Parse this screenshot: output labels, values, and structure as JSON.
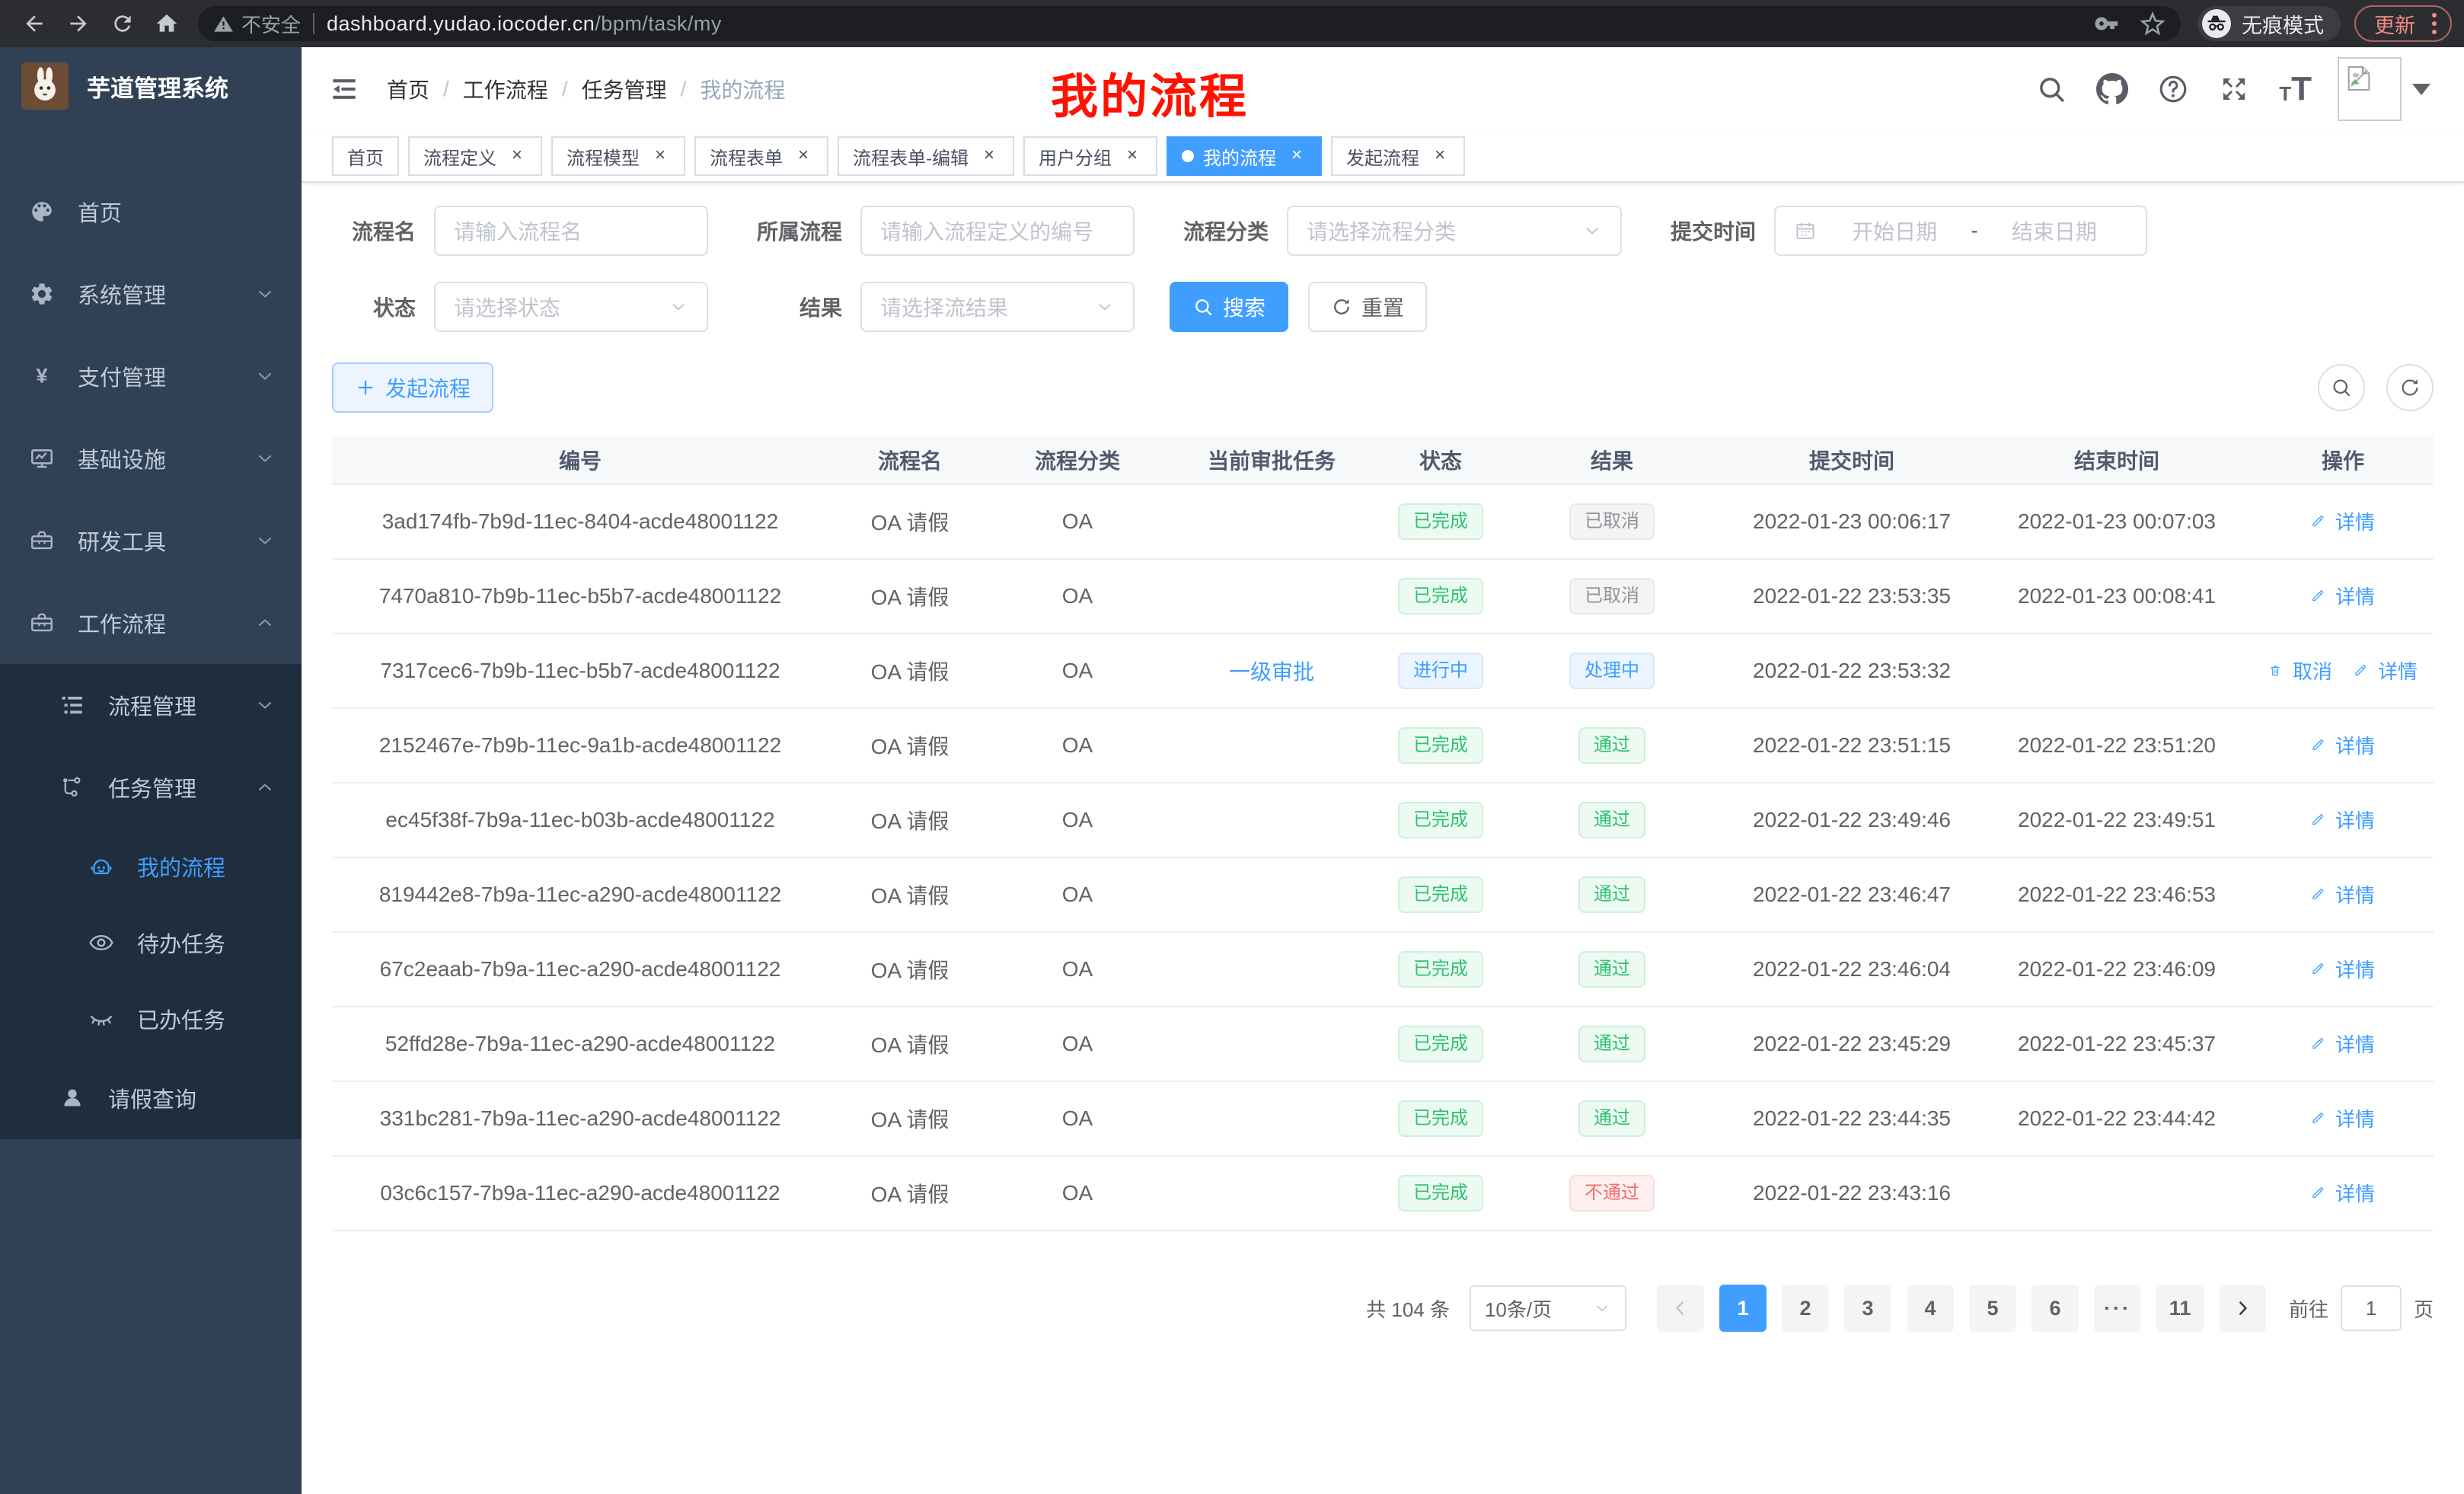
{
  "colors": {
    "accent": "#409eff",
    "success": "#2dc26e",
    "danger": "#f56c6c",
    "info": "#909399",
    "sidebar_bg": "#304156",
    "submenu_bg": "#1f2d3d",
    "annotation_red": "#ff1200"
  },
  "browser": {
    "security_label": "不安全",
    "url_domain": "dashboard.yudao.iocoder.cn",
    "url_path": "/bpm/task/my",
    "incognito_label": "无痕模式",
    "update_label": "更新"
  },
  "sidebar": {
    "title": "芋道管理系统",
    "items": [
      {
        "label": "首页",
        "icon": "dashboard-icon",
        "level": 1,
        "zone": "main"
      },
      {
        "label": "系统管理",
        "icon": "gear-icon",
        "level": 1,
        "zone": "main",
        "chevron": "down"
      },
      {
        "label": "支付管理",
        "icon": "yen-icon",
        "level": 1,
        "zone": "main",
        "chevron": "down"
      },
      {
        "label": "基础设施",
        "icon": "monitor-icon",
        "level": 1,
        "zone": "main",
        "chevron": "down"
      },
      {
        "label": "研发工具",
        "icon": "toolbox-icon",
        "level": 1,
        "zone": "main",
        "chevron": "down"
      },
      {
        "label": "工作流程",
        "icon": "briefcase-icon",
        "level": 1,
        "zone": "main",
        "chevron": "up"
      },
      {
        "label": "流程管理",
        "icon": "tree-icon",
        "level": 2,
        "zone": "sub",
        "chevron": "down"
      },
      {
        "label": "任务管理",
        "icon": "flow-icon",
        "level": 2,
        "zone": "sub",
        "chevron": "up"
      },
      {
        "label": "我的流程",
        "icon": "robot-icon",
        "level": 3,
        "zone": "sub",
        "active": true
      },
      {
        "label": "待办任务",
        "icon": "eye-icon",
        "level": 3,
        "zone": "sub"
      },
      {
        "label": "已办任务",
        "icon": "eye-closed-icon",
        "level": 3,
        "zone": "sub"
      },
      {
        "label": "请假查询",
        "icon": "user-icon",
        "level": 2,
        "zone": "sub"
      }
    ]
  },
  "navbar": {
    "breadcrumb": [
      "首页",
      "工作流程",
      "任务管理",
      "我的流程"
    ],
    "annotation": "我的流程"
  },
  "tabs": [
    {
      "label": "首页",
      "closable": false,
      "active": false
    },
    {
      "label": "流程定义",
      "closable": true,
      "active": false
    },
    {
      "label": "流程模型",
      "closable": true,
      "active": false
    },
    {
      "label": "流程表单",
      "closable": true,
      "active": false
    },
    {
      "label": "流程表单-编辑",
      "closable": true,
      "active": false
    },
    {
      "label": "用户分组",
      "closable": true,
      "active": false
    },
    {
      "label": "我的流程",
      "closable": true,
      "active": true
    },
    {
      "label": "发起流程",
      "closable": true,
      "active": false
    }
  ],
  "filters": {
    "name_label": "流程名",
    "name_placeholder": "请输入流程名",
    "def_label": "所属流程",
    "def_placeholder": "请输入流程定义的编号",
    "category_label": "流程分类",
    "category_placeholder": "请选择流程分类",
    "time_label": "提交时间",
    "time_start_placeholder": "开始日期",
    "time_separator": "-",
    "time_end_placeholder": "结束日期",
    "status_label": "状态",
    "status_placeholder": "请选择状态",
    "result_label": "结果",
    "result_placeholder": "请选择流结果",
    "search_label": "搜索",
    "reset_label": "重置"
  },
  "toolbar": {
    "create_label": "发起流程"
  },
  "table": {
    "columns": [
      "编号",
      "流程名",
      "流程分类",
      "当前审批任务",
      "状态",
      "结果",
      "提交时间",
      "结束时间",
      "操作"
    ],
    "rows": [
      {
        "id": "3ad174fb-7b9d-11ec-8404-acde48001122",
        "name": "OA 请假",
        "category": "OA",
        "task": "",
        "status": {
          "text": "已完成",
          "type": "success"
        },
        "result": {
          "text": "已取消",
          "type": "info"
        },
        "submit_time": "2022-01-23 00:06:17",
        "end_time": "2022-01-23 00:07:03",
        "actions": [
          {
            "label": "详情",
            "icon": "edit-icon"
          }
        ]
      },
      {
        "id": "7470a810-7b9b-11ec-b5b7-acde48001122",
        "name": "OA 请假",
        "category": "OA",
        "task": "",
        "status": {
          "text": "已完成",
          "type": "success"
        },
        "result": {
          "text": "已取消",
          "type": "info"
        },
        "submit_time": "2022-01-22 23:53:35",
        "end_time": "2022-01-23 00:08:41",
        "actions": [
          {
            "label": "详情",
            "icon": "edit-icon"
          }
        ]
      },
      {
        "id": "7317cec6-7b9b-11ec-b5b7-acde48001122",
        "name": "OA 请假",
        "category": "OA",
        "task": "一级审批",
        "status": {
          "text": "进行中",
          "type": "primary"
        },
        "result": {
          "text": "处理中",
          "type": "primary"
        },
        "submit_time": "2022-01-22 23:53:32",
        "end_time": "",
        "actions": [
          {
            "label": "取消",
            "icon": "delete-icon"
          },
          {
            "label": "详情",
            "icon": "edit-icon"
          }
        ]
      },
      {
        "id": "2152467e-7b9b-11ec-9a1b-acde48001122",
        "name": "OA 请假",
        "category": "OA",
        "task": "",
        "status": {
          "text": "已完成",
          "type": "success"
        },
        "result": {
          "text": "通过",
          "type": "success"
        },
        "submit_time": "2022-01-22 23:51:15",
        "end_time": "2022-01-22 23:51:20",
        "actions": [
          {
            "label": "详情",
            "icon": "edit-icon"
          }
        ]
      },
      {
        "id": "ec45f38f-7b9a-11ec-b03b-acde48001122",
        "name": "OA 请假",
        "category": "OA",
        "task": "",
        "status": {
          "text": "已完成",
          "type": "success"
        },
        "result": {
          "text": "通过",
          "type": "success"
        },
        "submit_time": "2022-01-22 23:49:46",
        "end_time": "2022-01-22 23:49:51",
        "actions": [
          {
            "label": "详情",
            "icon": "edit-icon"
          }
        ]
      },
      {
        "id": "819442e8-7b9a-11ec-a290-acde48001122",
        "name": "OA 请假",
        "category": "OA",
        "task": "",
        "status": {
          "text": "已完成",
          "type": "success"
        },
        "result": {
          "text": "通过",
          "type": "success"
        },
        "submit_time": "2022-01-22 23:46:47",
        "end_time": "2022-01-22 23:46:53",
        "actions": [
          {
            "label": "详情",
            "icon": "edit-icon"
          }
        ]
      },
      {
        "id": "67c2eaab-7b9a-11ec-a290-acde48001122",
        "name": "OA 请假",
        "category": "OA",
        "task": "",
        "status": {
          "text": "已完成",
          "type": "success"
        },
        "result": {
          "text": "通过",
          "type": "success"
        },
        "submit_time": "2022-01-22 23:46:04",
        "end_time": "2022-01-22 23:46:09",
        "actions": [
          {
            "label": "详情",
            "icon": "edit-icon"
          }
        ]
      },
      {
        "id": "52ffd28e-7b9a-11ec-a290-acde48001122",
        "name": "OA 请假",
        "category": "OA",
        "task": "",
        "status": {
          "text": "已完成",
          "type": "success"
        },
        "result": {
          "text": "通过",
          "type": "success"
        },
        "submit_time": "2022-01-22 23:45:29",
        "end_time": "2022-01-22 23:45:37",
        "actions": [
          {
            "label": "详情",
            "icon": "edit-icon"
          }
        ]
      },
      {
        "id": "331bc281-7b9a-11ec-a290-acde48001122",
        "name": "OA 请假",
        "category": "OA",
        "task": "",
        "status": {
          "text": "已完成",
          "type": "success"
        },
        "result": {
          "text": "通过",
          "type": "success"
        },
        "submit_time": "2022-01-22 23:44:35",
        "end_time": "2022-01-22 23:44:42",
        "actions": [
          {
            "label": "详情",
            "icon": "edit-icon"
          }
        ]
      },
      {
        "id": "03c6c157-7b9a-11ec-a290-acde48001122",
        "name": "OA 请假",
        "category": "OA",
        "task": "",
        "status": {
          "text": "已完成",
          "type": "success"
        },
        "result": {
          "text": "不通过",
          "type": "danger"
        },
        "submit_time": "2022-01-22 23:43:16",
        "end_time": "",
        "actions": [
          {
            "label": "详情",
            "icon": "edit-icon"
          }
        ]
      }
    ]
  },
  "pagination": {
    "total": "共 104 条",
    "page_size": "10条/页",
    "pages": [
      "1",
      "2",
      "3",
      "4",
      "5",
      "6",
      "···",
      "11"
    ],
    "active_page": "1",
    "goto_label": "前往",
    "goto_value": "1",
    "goto_unit": "页"
  }
}
